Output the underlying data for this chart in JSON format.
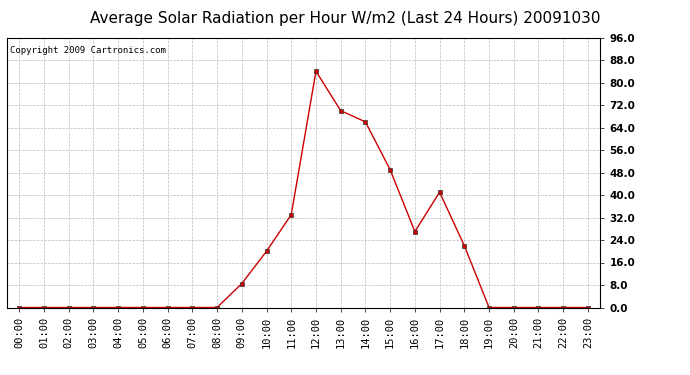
{
  "title": "Average Solar Radiation per Hour W/m2 (Last 24 Hours) 20091030",
  "copyright": "Copyright 2009 Cartronics.com",
  "x_labels": [
    "00:00",
    "01:00",
    "02:00",
    "03:00",
    "04:00",
    "05:00",
    "06:00",
    "07:00",
    "08:00",
    "09:00",
    "10:00",
    "11:00",
    "12:00",
    "13:00",
    "14:00",
    "15:00",
    "16:00",
    "17:00",
    "18:00",
    "19:00",
    "20:00",
    "21:00",
    "22:00",
    "23:00"
  ],
  "y_values": [
    0.0,
    0.0,
    0.0,
    0.0,
    0.0,
    0.0,
    0.0,
    0.0,
    0.0,
    8.5,
    20.0,
    33.0,
    84.0,
    70.0,
    66.0,
    49.0,
    27.0,
    41.0,
    22.0,
    0.0,
    0.0,
    0.0,
    0.0,
    0.0
  ],
  "ylim": [
    0.0,
    96.0
  ],
  "yticks": [
    0.0,
    8.0,
    16.0,
    24.0,
    32.0,
    40.0,
    48.0,
    56.0,
    64.0,
    72.0,
    80.0,
    88.0,
    96.0
  ],
  "line_color": "#cc0000",
  "marker": "s",
  "marker_size": 2.5,
  "background_color": "#ffffff",
  "plot_bg_color": "#ffffff",
  "grid_color": "#bbbbbb",
  "title_fontsize": 11,
  "copyright_fontsize": 6.5,
  "tick_fontsize": 7.5
}
